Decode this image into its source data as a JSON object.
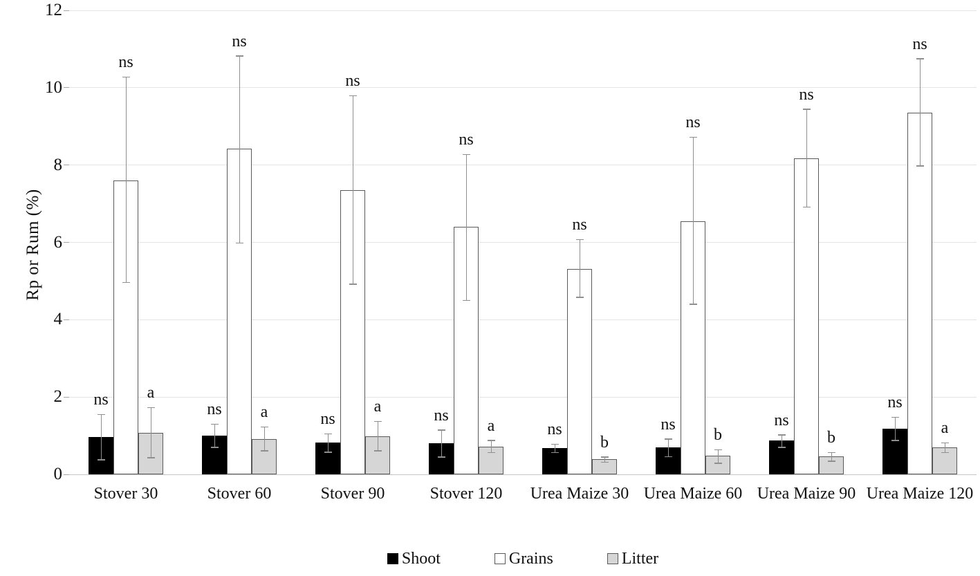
{
  "chart_data": {
    "type": "bar",
    "title": "",
    "ylabel": "Rp or Rum  (%)",
    "xlabel": "",
    "ylim": [
      0,
      12
    ],
    "yticks": [
      0,
      2,
      4,
      6,
      8,
      10,
      12
    ],
    "grid": true,
    "legend_position": "bottom",
    "categories": [
      "Stover 30",
      "Stover 60",
      "Stover 90",
      "Stover 120",
      "Urea Maize 30",
      "Urea Maize 60",
      "Urea Maize 90",
      "Urea Maize 120"
    ],
    "series": [
      {
        "name": "Shoot",
        "fill": "#000000",
        "border": "#000000",
        "values": [
          0.97,
          1.0,
          0.82,
          0.8,
          0.68,
          0.7,
          0.87,
          1.18
        ],
        "err_high": [
          1.55,
          1.3,
          1.05,
          1.15,
          0.78,
          0.92,
          1.02,
          1.48
        ],
        "err_low": [
          0.38,
          0.7,
          0.58,
          0.45,
          0.57,
          0.46,
          0.7,
          0.88
        ],
        "sig": [
          "ns",
          "ns",
          "ns",
          "ns",
          "ns",
          "ns",
          "ns",
          "ns"
        ]
      },
      {
        "name": "Grains",
        "fill": "#ffffff",
        "border": "#595959",
        "values": [
          7.6,
          8.42,
          7.35,
          6.4,
          5.32,
          6.55,
          8.18,
          9.35
        ],
        "err_high": [
          10.28,
          10.82,
          9.8,
          8.28,
          6.08,
          8.72,
          9.45,
          10.75
        ],
        "err_low": [
          4.97,
          5.99,
          4.92,
          4.5,
          4.58,
          4.4,
          6.92,
          7.98
        ],
        "sig": [
          "ns",
          "ns",
          "ns",
          "ns",
          "ns",
          "ns",
          "ns",
          "ns"
        ]
      },
      {
        "name": "Litter",
        "fill": "#d6d6d6",
        "border": "#595959",
        "values": [
          1.07,
          0.92,
          0.98,
          0.72,
          0.39,
          0.48,
          0.47,
          0.7
        ],
        "err_high": [
          1.73,
          1.23,
          1.37,
          0.88,
          0.45,
          0.64,
          0.57,
          0.82
        ],
        "err_low": [
          0.43,
          0.61,
          0.61,
          0.57,
          0.32,
          0.29,
          0.34,
          0.57
        ],
        "sig": [
          "a",
          "a",
          "a",
          "a",
          "b",
          "b",
          "b",
          "a"
        ]
      }
    ],
    "colors": {
      "error_bar": "#8f8f8f",
      "gridline": "#e4e4e4",
      "baseline": "#c6c6c6",
      "tick": "#a6a6a6",
      "text": "#111111",
      "background": "#ffffff"
    }
  }
}
